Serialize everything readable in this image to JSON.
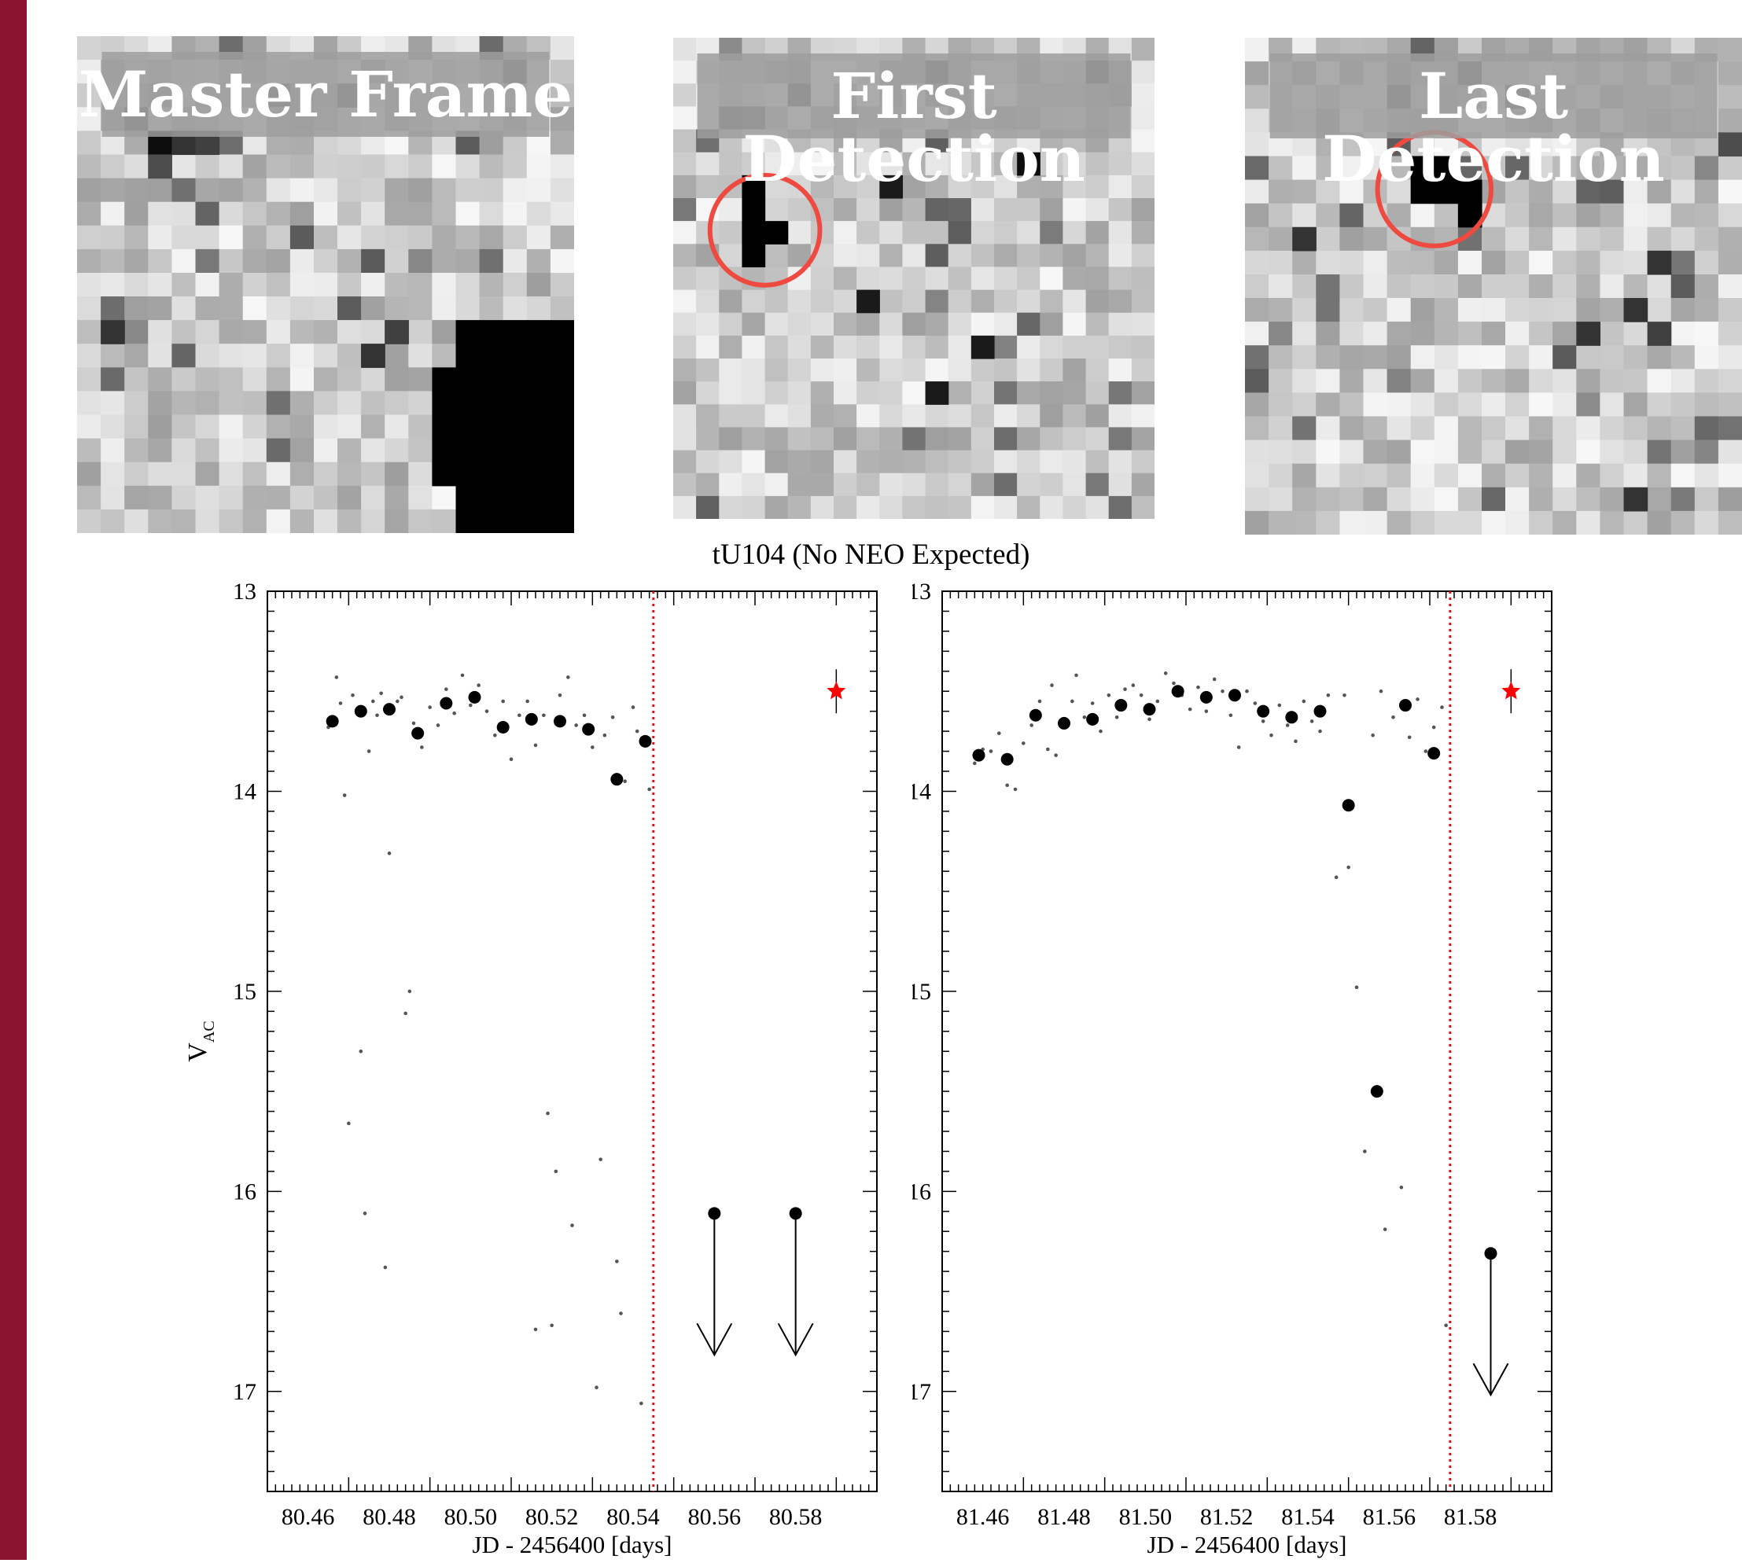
{
  "colors": {
    "sidebar": "#8b1530",
    "circle": "#ee4a40",
    "marker": "#000000",
    "star": "#ff0000",
    "vline": "#e01010",
    "thumb_band": "#9e9e9e"
  },
  "thumbnails": [
    {
      "label": "Master Frame",
      "circle": false
    },
    {
      "label": "First Detection",
      "circle": true
    },
    {
      "label": "Last Detection",
      "circle": true
    }
  ],
  "suptitle": "tU104 (No NEO Expected)",
  "chart_data": [
    {
      "type": "scatter",
      "xlabel": "JD - 2456400 [days]",
      "ylabel": "V",
      "ylabel_sub": "AC",
      "xlim": [
        80.45,
        80.6
      ],
      "ylim": [
        17.5,
        13
      ],
      "xticks": [
        "80.46",
        "80.48",
        "80.50",
        "80.52",
        "80.54",
        "80.56",
        "80.58"
      ],
      "yticks": [
        "13",
        "14",
        "15",
        "16",
        "17"
      ],
      "vline_x": 80.545,
      "reference_point": {
        "x": 80.59,
        "y": 13.5
      },
      "binned": [
        {
          "x": 80.466,
          "y": 13.65
        },
        {
          "x": 80.473,
          "y": 13.6
        },
        {
          "x": 80.48,
          "y": 13.59
        },
        {
          "x": 80.487,
          "y": 13.71
        },
        {
          "x": 80.494,
          "y": 13.56
        },
        {
          "x": 80.501,
          "y": 13.53
        },
        {
          "x": 80.508,
          "y": 13.68
        },
        {
          "x": 80.515,
          "y": 13.64
        },
        {
          "x": 80.522,
          "y": 13.65
        },
        {
          "x": 80.529,
          "y": 13.69
        },
        {
          "x": 80.536,
          "y": 13.94
        },
        {
          "x": 80.543,
          "y": 13.75
        }
      ],
      "upper_limits": [
        {
          "x": 80.56,
          "y": 16.11
        },
        {
          "x": 80.58,
          "y": 16.11
        }
      ],
      "raw": [
        {
          "x": 80.465,
          "y": 13.68
        },
        {
          "x": 80.467,
          "y": 13.43
        },
        {
          "x": 80.468,
          "y": 13.56
        },
        {
          "x": 80.469,
          "y": 14.02
        },
        {
          "x": 80.47,
          "y": 15.66
        },
        {
          "x": 80.471,
          "y": 13.52
        },
        {
          "x": 80.472,
          "y": 13.61
        },
        {
          "x": 80.473,
          "y": 15.3
        },
        {
          "x": 80.474,
          "y": 16.11
        },
        {
          "x": 80.475,
          "y": 13.8
        },
        {
          "x": 80.476,
          "y": 13.55
        },
        {
          "x": 80.477,
          "y": 13.62
        },
        {
          "x": 80.478,
          "y": 13.51
        },
        {
          "x": 80.479,
          "y": 16.38
        },
        {
          "x": 80.48,
          "y": 14.31
        },
        {
          "x": 80.481,
          "y": 13.6
        },
        {
          "x": 80.482,
          "y": 13.55
        },
        {
          "x": 80.483,
          "y": 13.53
        },
        {
          "x": 80.484,
          "y": 15.11
        },
        {
          "x": 80.485,
          "y": 15.0
        },
        {
          "x": 80.486,
          "y": 13.66
        },
        {
          "x": 80.488,
          "y": 13.78
        },
        {
          "x": 80.49,
          "y": 13.58
        },
        {
          "x": 80.492,
          "y": 13.67
        },
        {
          "x": 80.494,
          "y": 13.49
        },
        {
          "x": 80.496,
          "y": 13.61
        },
        {
          "x": 80.498,
          "y": 13.42
        },
        {
          "x": 80.5,
          "y": 13.57
        },
        {
          "x": 80.502,
          "y": 13.47
        },
        {
          "x": 80.504,
          "y": 13.6
        },
        {
          "x": 80.506,
          "y": 13.72
        },
        {
          "x": 80.508,
          "y": 13.55
        },
        {
          "x": 80.51,
          "y": 13.84
        },
        {
          "x": 80.512,
          "y": 13.62
        },
        {
          "x": 80.514,
          "y": 13.55
        },
        {
          "x": 80.516,
          "y": 13.77
        },
        {
          "x": 80.516,
          "y": 16.69
        },
        {
          "x": 80.518,
          "y": 13.62
        },
        {
          "x": 80.519,
          "y": 15.61
        },
        {
          "x": 80.52,
          "y": 16.67
        },
        {
          "x": 80.521,
          "y": 15.9
        },
        {
          "x": 80.522,
          "y": 13.52
        },
        {
          "x": 80.524,
          "y": 13.43
        },
        {
          "x": 80.525,
          "y": 16.17
        },
        {
          "x": 80.526,
          "y": 13.67
        },
        {
          "x": 80.528,
          "y": 13.62
        },
        {
          "x": 80.53,
          "y": 13.78
        },
        {
          "x": 80.531,
          "y": 16.98
        },
        {
          "x": 80.532,
          "y": 15.84
        },
        {
          "x": 80.533,
          "y": 13.72
        },
        {
          "x": 80.535,
          "y": 13.63
        },
        {
          "x": 80.536,
          "y": 16.35
        },
        {
          "x": 80.537,
          "y": 16.61
        },
        {
          "x": 80.538,
          "y": 13.95
        },
        {
          "x": 80.54,
          "y": 13.58
        },
        {
          "x": 80.541,
          "y": 13.7
        },
        {
          "x": 80.542,
          "y": 17.06
        },
        {
          "x": 80.544,
          "y": 13.99
        }
      ]
    },
    {
      "type": "scatter",
      "xlabel": "JD - 2456400 [days]",
      "ylabel": "V",
      "ylabel_sub": "AC",
      "xlim": [
        81.45,
        81.6
      ],
      "ylim": [
        17.5,
        13
      ],
      "xticks": [
        "81.46",
        "81.48",
        "81.50",
        "81.52",
        "81.54",
        "81.56",
        "81.58"
      ],
      "yticks": [
        "13",
        "14",
        "15",
        "16",
        "17"
      ],
      "vline_x": 81.575,
      "reference_point": {
        "x": 81.59,
        "y": 13.5
      },
      "binned": [
        {
          "x": 81.459,
          "y": 13.82
        },
        {
          "x": 81.466,
          "y": 13.84
        },
        {
          "x": 81.473,
          "y": 13.62
        },
        {
          "x": 81.48,
          "y": 13.66
        },
        {
          "x": 81.487,
          "y": 13.64
        },
        {
          "x": 81.494,
          "y": 13.57
        },
        {
          "x": 81.501,
          "y": 13.59
        },
        {
          "x": 81.508,
          "y": 13.5
        },
        {
          "x": 81.515,
          "y": 13.53
        },
        {
          "x": 81.522,
          "y": 13.52
        },
        {
          "x": 81.529,
          "y": 13.6
        },
        {
          "x": 81.536,
          "y": 13.63
        },
        {
          "x": 81.543,
          "y": 13.6
        },
        {
          "x": 81.55,
          "y": 14.07
        },
        {
          "x": 81.557,
          "y": 15.5
        },
        {
          "x": 81.564,
          "y": 13.57
        },
        {
          "x": 81.571,
          "y": 13.81
        }
      ],
      "upper_limits": [
        {
          "x": 81.585,
          "y": 16.31
        }
      ],
      "raw": [
        {
          "x": 81.458,
          "y": 13.86
        },
        {
          "x": 81.46,
          "y": 13.79
        },
        {
          "x": 81.462,
          "y": 13.8
        },
        {
          "x": 81.464,
          "y": 13.71
        },
        {
          "x": 81.466,
          "y": 13.97
        },
        {
          "x": 81.468,
          "y": 13.99
        },
        {
          "x": 81.47,
          "y": 13.76
        },
        {
          "x": 81.472,
          "y": 13.67
        },
        {
          "x": 81.474,
          "y": 13.55
        },
        {
          "x": 81.476,
          "y": 13.79
        },
        {
          "x": 81.477,
          "y": 13.47
        },
        {
          "x": 81.478,
          "y": 13.82
        },
        {
          "x": 81.48,
          "y": 13.64
        },
        {
          "x": 81.482,
          "y": 13.55
        },
        {
          "x": 81.483,
          "y": 13.42
        },
        {
          "x": 81.485,
          "y": 13.63
        },
        {
          "x": 81.487,
          "y": 13.56
        },
        {
          "x": 81.489,
          "y": 13.7
        },
        {
          "x": 81.491,
          "y": 13.52
        },
        {
          "x": 81.493,
          "y": 13.63
        },
        {
          "x": 81.495,
          "y": 13.49
        },
        {
          "x": 81.497,
          "y": 13.47
        },
        {
          "x": 81.499,
          "y": 13.52
        },
        {
          "x": 81.501,
          "y": 13.64
        },
        {
          "x": 81.503,
          "y": 13.55
        },
        {
          "x": 81.505,
          "y": 13.41
        },
        {
          "x": 81.507,
          "y": 13.46
        },
        {
          "x": 81.509,
          "y": 13.52
        },
        {
          "x": 81.511,
          "y": 13.59
        },
        {
          "x": 81.513,
          "y": 13.48
        },
        {
          "x": 81.515,
          "y": 13.6
        },
        {
          "x": 81.517,
          "y": 13.44
        },
        {
          "x": 81.519,
          "y": 13.5
        },
        {
          "x": 81.521,
          "y": 13.62
        },
        {
          "x": 81.523,
          "y": 13.78
        },
        {
          "x": 81.525,
          "y": 13.5
        },
        {
          "x": 81.527,
          "y": 13.56
        },
        {
          "x": 81.529,
          "y": 13.65
        },
        {
          "x": 81.531,
          "y": 13.72
        },
        {
          "x": 81.533,
          "y": 13.57
        },
        {
          "x": 81.535,
          "y": 13.67
        },
        {
          "x": 81.537,
          "y": 13.75
        },
        {
          "x": 81.539,
          "y": 13.55
        },
        {
          "x": 81.541,
          "y": 13.65
        },
        {
          "x": 81.543,
          "y": 13.7
        },
        {
          "x": 81.545,
          "y": 13.52
        },
        {
          "x": 81.547,
          "y": 14.43
        },
        {
          "x": 81.549,
          "y": 13.52
        },
        {
          "x": 81.55,
          "y": 14.38
        },
        {
          "x": 81.552,
          "y": 14.98
        },
        {
          "x": 81.554,
          "y": 15.8
        },
        {
          "x": 81.556,
          "y": 13.72
        },
        {
          "x": 81.558,
          "y": 13.5
        },
        {
          "x": 81.559,
          "y": 16.19
        },
        {
          "x": 81.561,
          "y": 13.63
        },
        {
          "x": 81.563,
          "y": 15.98
        },
        {
          "x": 81.565,
          "y": 13.73
        },
        {
          "x": 81.567,
          "y": 13.54
        },
        {
          "x": 81.569,
          "y": 13.8
        },
        {
          "x": 81.571,
          "y": 13.68
        },
        {
          "x": 81.573,
          "y": 13.58
        },
        {
          "x": 81.574,
          "y": 16.67
        }
      ]
    }
  ]
}
